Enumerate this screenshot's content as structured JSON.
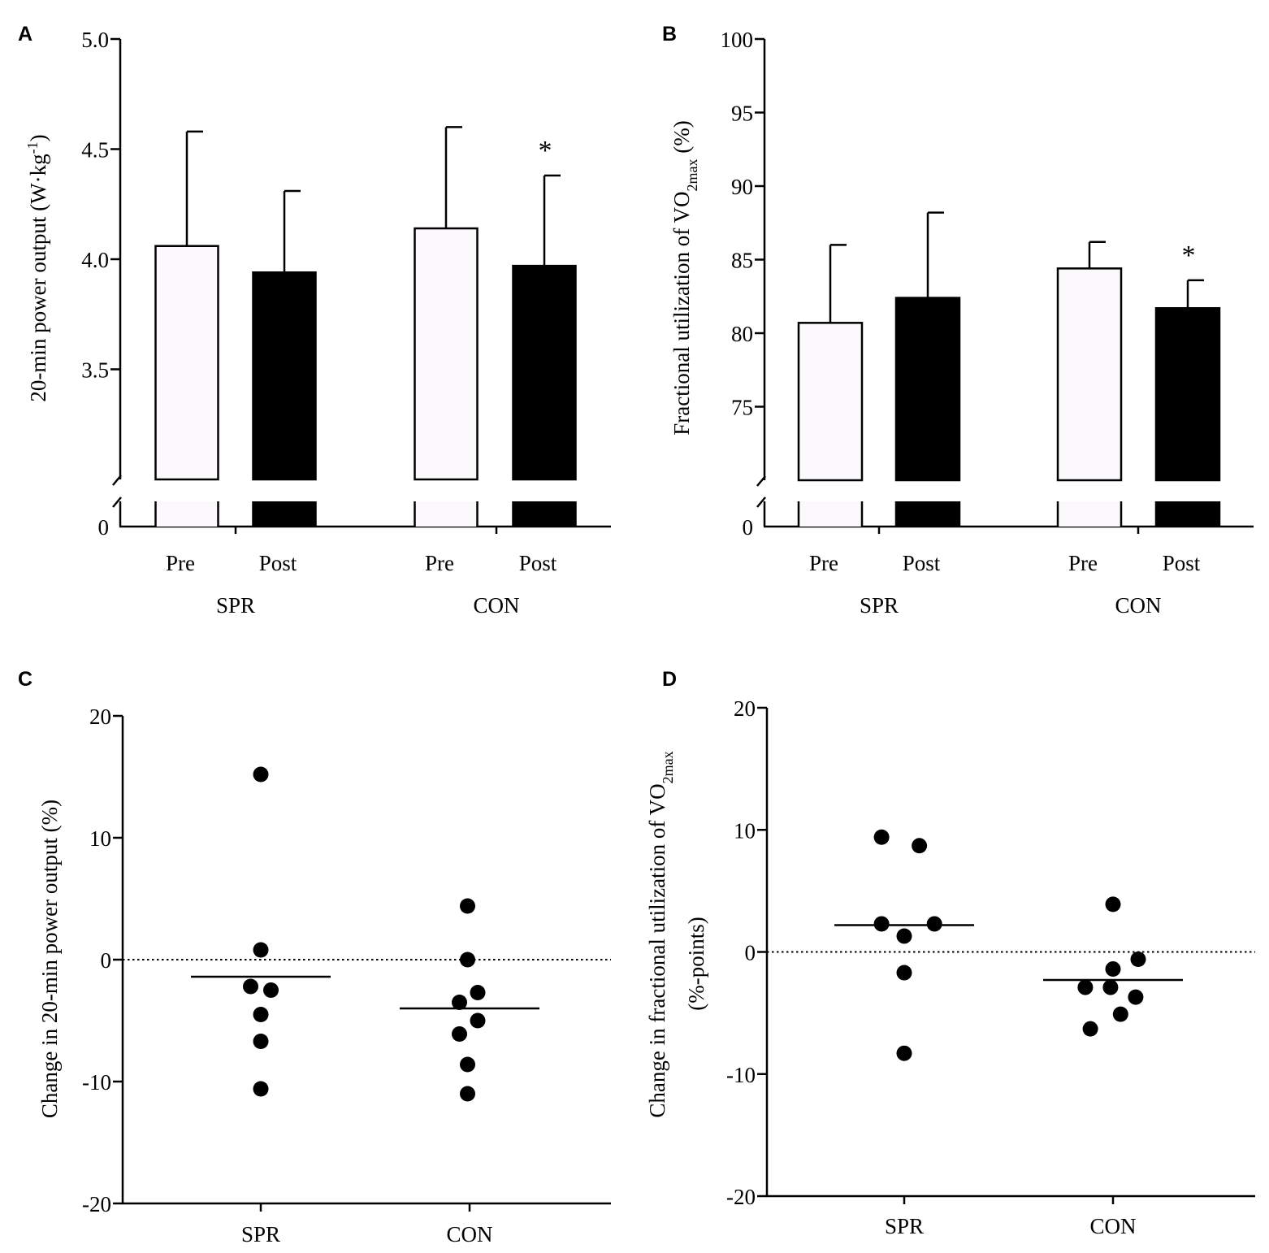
{
  "chart_data": [
    {
      "panel": "A",
      "type": "bar",
      "ylabel": "20-min power output (W·kg",
      "ylabel_sup": "-1",
      "ylabel_tail": ")",
      "yticks": [
        "0",
        "3.5",
        "4.0",
        "4.5",
        "5.0"
      ],
      "ylim": [
        3.0,
        5.0
      ],
      "axis_break": true,
      "groups": [
        "SPR",
        "CON"
      ],
      "categories": [
        "Pre",
        "Post",
        "Pre",
        "Post"
      ],
      "bars": [
        {
          "group": "SPR",
          "label": "Pre",
          "value": 4.06,
          "error": 0.52,
          "fill": "#fbf9fc"
        },
        {
          "group": "SPR",
          "label": "Post",
          "value": 3.94,
          "error": 0.37,
          "fill": "#000000"
        },
        {
          "group": "CON",
          "label": "Pre",
          "value": 4.14,
          "error": 0.46,
          "fill": "#fbf9fc"
        },
        {
          "group": "CON",
          "label": "Post",
          "value": 3.97,
          "error": 0.41,
          "fill": "#000000",
          "annotation": "*"
        }
      ]
    },
    {
      "panel": "B",
      "type": "bar",
      "ylabel": "Fractional utilization of VO",
      "ylabel_sub": "2max",
      "ylabel_tail": " (%)",
      "yticks": [
        "0",
        "75",
        "80",
        "85",
        "90",
        "95",
        "100"
      ],
      "ylim": [
        70,
        100
      ],
      "axis_break": true,
      "groups": [
        "SPR",
        "CON"
      ],
      "categories": [
        "Pre",
        "Post",
        "Pre",
        "Post"
      ],
      "bars": [
        {
          "group": "SPR",
          "label": "Pre",
          "value": 80.7,
          "error": 5.3,
          "fill": "#fbf9fc"
        },
        {
          "group": "SPR",
          "label": "Post",
          "value": 82.4,
          "error": 5.8,
          "fill": "#000000"
        },
        {
          "group": "CON",
          "label": "Pre",
          "value": 84.4,
          "error": 1.8,
          "fill": "#fbf9fc"
        },
        {
          "group": "CON",
          "label": "Post",
          "value": 81.7,
          "error": 1.9,
          "fill": "#000000",
          "annotation": "*"
        }
      ]
    },
    {
      "panel": "C",
      "type": "scatter",
      "ylabel": "Change in 20-min power output (%)",
      "yticks": [
        "-20",
        "-10",
        "0",
        "10",
        "20"
      ],
      "ylim": [
        -20,
        20
      ],
      "reference_line": 0,
      "categories": [
        "SPR",
        "CON"
      ],
      "points": [
        {
          "group": "SPR",
          "offset": 0.0,
          "value": 15.2
        },
        {
          "group": "SPR",
          "offset": 0.0,
          "value": 0.8
        },
        {
          "group": "SPR",
          "offset": -0.25,
          "value": -2.2
        },
        {
          "group": "SPR",
          "offset": 0.25,
          "value": -2.5
        },
        {
          "group": "SPR",
          "offset": 0.0,
          "value": -4.5
        },
        {
          "group": "SPR",
          "offset": 0.0,
          "value": -6.7
        },
        {
          "group": "SPR",
          "offset": 0.0,
          "value": -10.6
        },
        {
          "group": "CON",
          "offset": -0.05,
          "value": 4.4
        },
        {
          "group": "CON",
          "offset": -0.05,
          "value": 0.0
        },
        {
          "group": "CON",
          "offset": -0.25,
          "value": -3.5
        },
        {
          "group": "CON",
          "offset": 0.2,
          "value": -2.7
        },
        {
          "group": "CON",
          "offset": -0.25,
          "value": -6.1
        },
        {
          "group": "CON",
          "offset": 0.2,
          "value": -5.0
        },
        {
          "group": "CON",
          "offset": -0.05,
          "value": -8.6
        },
        {
          "group": "CON",
          "offset": -0.05,
          "value": -11.0
        }
      ],
      "means": [
        {
          "group": "SPR",
          "value": -1.4
        },
        {
          "group": "CON",
          "value": -4.0
        }
      ]
    },
    {
      "panel": "D",
      "type": "scatter",
      "ylabel": "Change in fractional utilization of VO",
      "ylabel_sub": "2max",
      "ylabel_line2": "(%-points)",
      "yticks": [
        "-20",
        "-10",
        "0",
        "10",
        "20"
      ],
      "ylim": [
        -20,
        20
      ],
      "reference_line": 0,
      "categories": [
        "SPR",
        "CON"
      ],
      "points": [
        {
          "group": "SPR",
          "offset": -0.45,
          "value": 9.4
        },
        {
          "group": "SPR",
          "offset": 0.3,
          "value": 8.7
        },
        {
          "group": "SPR",
          "offset": -0.45,
          "value": 2.3
        },
        {
          "group": "SPR",
          "offset": 0.6,
          "value": 2.3
        },
        {
          "group": "SPR",
          "offset": 0.0,
          "value": 1.3
        },
        {
          "group": "SPR",
          "offset": 0.0,
          "value": -1.7
        },
        {
          "group": "SPR",
          "offset": 0.0,
          "value": -8.3
        },
        {
          "group": "CON",
          "offset": 0.0,
          "value": 3.9
        },
        {
          "group": "CON",
          "offset": 0.0,
          "value": -1.4
        },
        {
          "group": "CON",
          "offset": 0.5,
          "value": -0.6
        },
        {
          "group": "CON",
          "offset": -0.55,
          "value": -2.9
        },
        {
          "group": "CON",
          "offset": -0.05,
          "value": -2.9
        },
        {
          "group": "CON",
          "offset": 0.45,
          "value": -3.7
        },
        {
          "group": "CON",
          "offset": 0.15,
          "value": -5.1
        },
        {
          "group": "CON",
          "offset": -0.45,
          "value": -6.3
        }
      ],
      "means": [
        {
          "group": "SPR",
          "value": 2.2
        },
        {
          "group": "CON",
          "value": -2.3
        }
      ]
    }
  ]
}
